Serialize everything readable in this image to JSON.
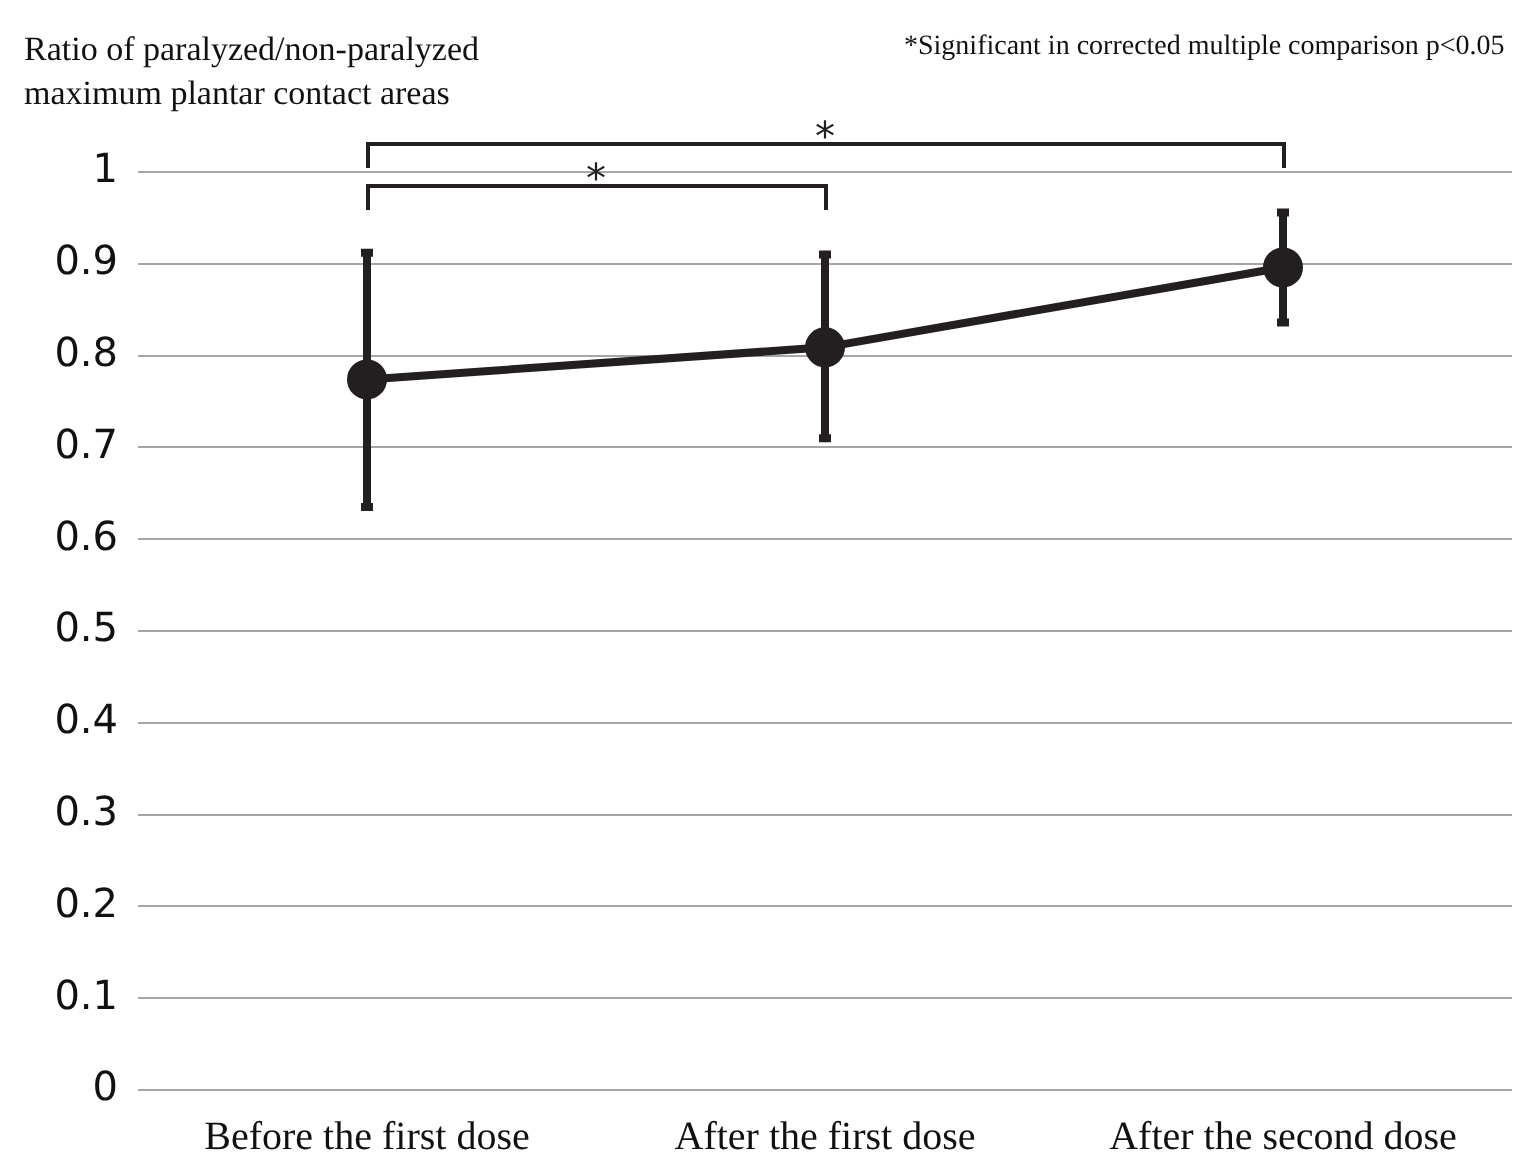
{
  "chart_data": {
    "type": "line",
    "ylabel": "Ratio of paralyzed/non-paralyzed maximum plantar contact areas",
    "categories": [
      "Before the first dose",
      "After the first dose",
      "After the second dose"
    ],
    "series": [
      {
        "color": "#231f20",
        "values": [
          0.774,
          0.809,
          0.896
        ],
        "errors": [
          [
            0.635,
            0.912
          ],
          [
            0.71,
            0.91
          ],
          [
            0.836,
            0.956
          ]
        ]
      }
    ],
    "ylim": [
      0,
      1
    ],
    "yticks": [
      0,
      0.1,
      0.2,
      0.3,
      0.4,
      0.5,
      0.6,
      0.7,
      0.8,
      0.9,
      1
    ],
    "grid": "y",
    "legend": false,
    "marker": "circle",
    "line_style": "solid",
    "annotations": [
      "*Significant in corrected multiple comparison p<0.05",
      "*",
      "*"
    ]
  }
}
